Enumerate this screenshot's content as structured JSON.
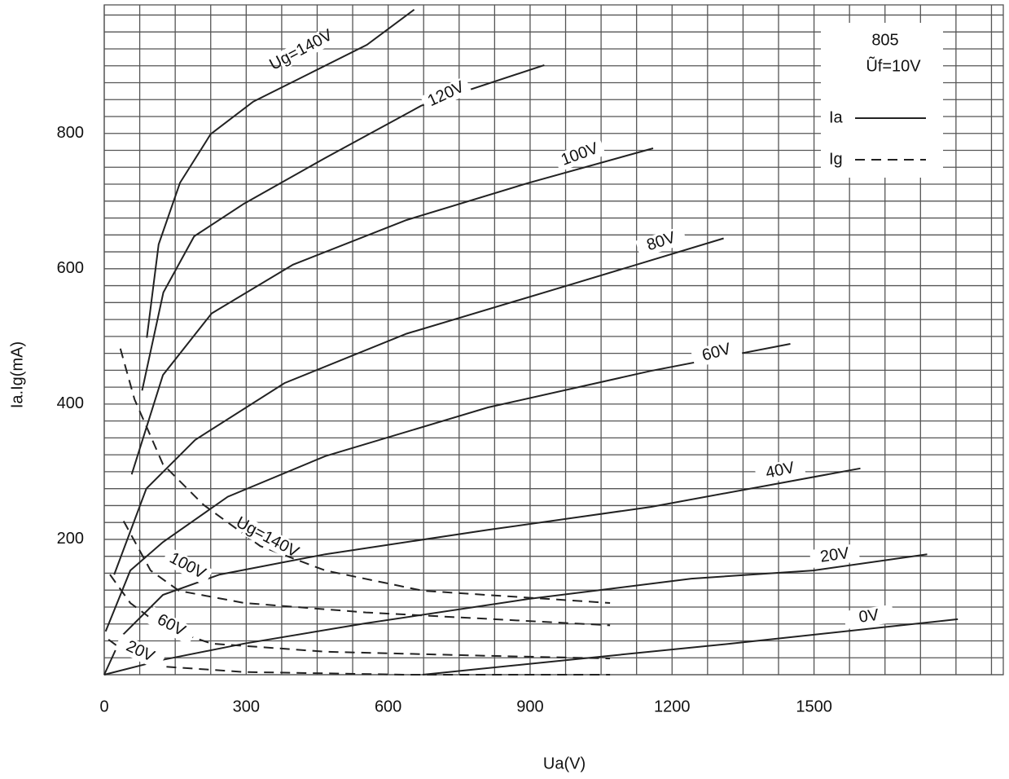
{
  "chart_data": {
    "type": "line",
    "x_label": "Ua(V)",
    "y_label": "Ia.Ig(mA)",
    "annotations": [
      "805",
      "Ũf=10V"
    ],
    "legend": [
      {
        "label": "Ia",
        "dash": false
      },
      {
        "label": "Ig",
        "dash": true
      }
    ],
    "xlim": [
      0,
      1900
    ],
    "ylim": [
      0,
      990
    ],
    "xticks": [
      0,
      300,
      600,
      900,
      1200,
      1500
    ],
    "yticks": [
      200,
      400,
      600,
      800
    ],
    "xgrid": [
      0,
      75,
      150,
      225,
      300,
      375,
      450,
      525,
      600,
      675,
      750,
      825,
      900,
      975,
      1050,
      1125,
      1200,
      1275,
      1350,
      1425,
      1500,
      1575,
      1650,
      1725,
      1800,
      1875
    ],
    "ygrid": [
      0,
      25,
      50,
      75,
      100,
      125,
      150,
      175,
      200,
      225,
      250,
      275,
      300,
      325,
      350,
      375,
      400,
      425,
      450,
      475,
      500,
      525,
      550,
      575,
      600,
      625,
      650,
      675,
      700,
      725,
      750,
      775,
      800,
      825,
      850,
      875,
      900,
      925,
      950,
      975
    ],
    "series": [
      {
        "name": "Ug=140V",
        "dash": false,
        "color": "#222222",
        "x": [
          90,
          115,
          160,
          225,
          315,
          435,
          555,
          655
        ],
        "values": [
          498,
          636,
          727,
          799,
          847,
          889,
          931,
          983
        ]
      },
      {
        "name": "120V",
        "dash": false,
        "color": "#222222",
        "x": [
          80,
          125,
          190,
          295,
          465,
          670,
          930
        ],
        "values": [
          420,
          565,
          648,
          696,
          763,
          841,
          901
        ]
      },
      {
        "name": "100V",
        "dash": false,
        "color": "#222222",
        "x": [
          58,
          124,
          227,
          399,
          639,
          897,
          1160
        ],
        "values": [
          296,
          443,
          534,
          606,
          672,
          727,
          778
        ]
      },
      {
        "name": "80V",
        "dash": false,
        "color": "#222222",
        "x": [
          21,
          89,
          192,
          381,
          639,
          983,
          1309
        ],
        "values": [
          148,
          275,
          347,
          431,
          504,
          576,
          645
        ]
      },
      {
        "name": "60V",
        "dash": false,
        "color": "#222222",
        "x": [
          3,
          55,
          124,
          261,
          467,
          811,
          1155,
          1450
        ],
        "values": [
          64,
          154,
          196,
          263,
          323,
          395,
          449,
          489
        ]
      },
      {
        "name": "40V",
        "dash": false,
        "color": "#222222",
        "x": [
          0,
          38,
          124,
          244,
          467,
          811,
          1155,
          1598
        ],
        "values": [
          0,
          58,
          118,
          148,
          178,
          214,
          248,
          305
        ]
      },
      {
        "name": "20V",
        "dash": false,
        "color": "#222222",
        "x": [
          0,
          124,
          296,
          553,
          897,
          1241,
          1498,
          1739
        ],
        "values": [
          0,
          22,
          46,
          76,
          112,
          142,
          154,
          178
        ]
      },
      {
        "name": "0V",
        "dash": false,
        "color": "#222222",
        "x": [
          673,
          983,
          1326,
          1804
        ],
        "values": [
          0,
          22,
          46,
          82
        ]
      },
      {
        "name": "Ug=140V",
        "dash": true,
        "color": "#222222",
        "x": [
          34,
          64,
          124,
          210,
          330,
          467,
          674,
          1069
        ],
        "values": [
          482,
          407,
          311,
          251,
          190,
          154,
          124,
          106
        ]
      },
      {
        "name": "100V",
        "dash": true,
        "color": "#222222",
        "x": [
          41,
          98,
          158,
          296,
          553,
          1069
        ],
        "values": [
          227,
          154,
          124,
          106,
          92,
          73
        ]
      },
      {
        "name": "60V",
        "dash": true,
        "color": "#222222",
        "x": [
          12,
          55,
          124,
          227,
          467,
          811,
          1069
        ],
        "values": [
          148,
          106,
          70,
          46,
          34,
          28,
          24
        ]
      },
      {
        "name": "20V",
        "dash": true,
        "color": "#222222",
        "x": [
          9,
          55,
          124,
          296,
          639,
          1069
        ],
        "values": [
          52,
          28,
          12,
          4,
          0,
          0
        ]
      }
    ]
  }
}
